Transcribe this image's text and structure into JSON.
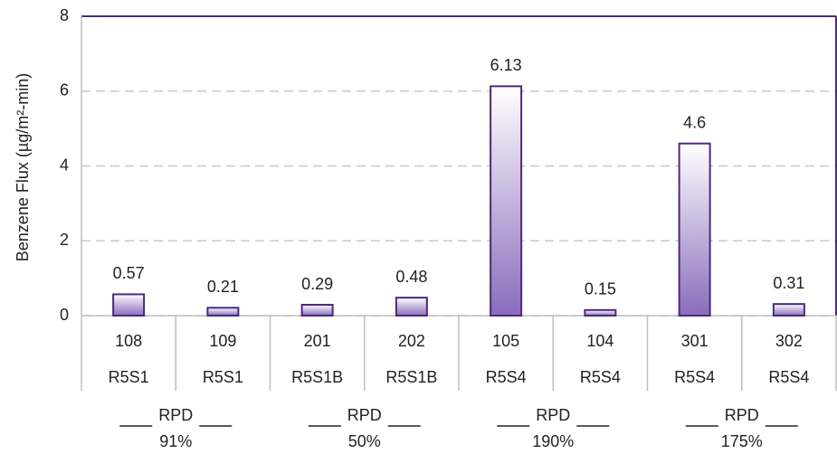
{
  "chart_data": {
    "type": "bar",
    "y_label": "Benzene Flux (µg/m²-min)",
    "categories": [
      "108",
      "109",
      "201",
      "202",
      "105",
      "104",
      "301",
      "302"
    ],
    "sub_categories": [
      "R5S1",
      "R5S1",
      "R5S1B",
      "R5S1B",
      "R5S4",
      "R5S4",
      "R5S4",
      "R5S4"
    ],
    "groups": [
      {
        "label": "RPD",
        "rpd": "91%"
      },
      {
        "label": "RPD",
        "rpd": "50%"
      },
      {
        "label": "RPD",
        "rpd": "190%"
      },
      {
        "label": "RPD",
        "rpd": "175%"
      }
    ],
    "values": [
      0.57,
      0.21,
      0.29,
      0.48,
      6.13,
      0.15,
      4.6,
      0.31
    ],
    "color": "#8a6cbc",
    "edge_color": "#4b2a7b",
    "ylim": [
      0,
      8
    ],
    "yticks": [
      0,
      2,
      4,
      6,
      8
    ],
    "grid": true
  }
}
